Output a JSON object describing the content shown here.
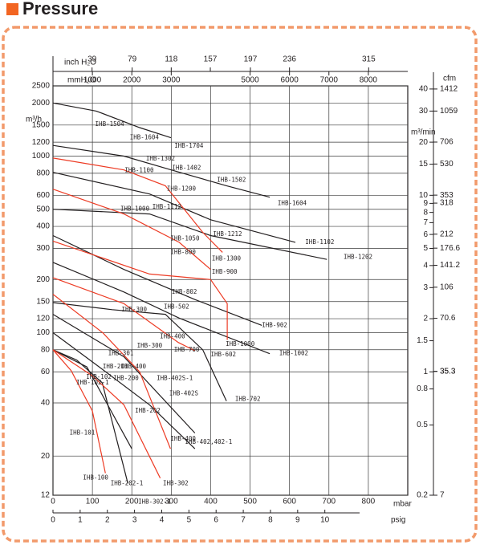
{
  "chart_data": {
    "type": "line",
    "title": "Pressure",
    "x_label": "mbar",
    "x2_label": "mmH₂O",
    "x3_label": "inch H₂O",
    "x4_label": "psig",
    "y_label": "m³/h",
    "y2_label": "m³/min",
    "y3_label": "cfm",
    "xlim": [
      0,
      900
    ],
    "xticks": [
      0,
      100,
      200,
      300,
      400,
      500,
      600,
      700,
      800
    ],
    "x2lim": [
      0,
      9000
    ],
    "x2ticks": [
      1000,
      2000,
      3000,
      5000,
      6000,
      7000,
      8000
    ],
    "x3lim": [
      0,
      354
    ],
    "x3ticks": [
      39,
      79,
      118,
      157,
      197,
      236,
      315
    ],
    "x4lim": [
      0,
      13.05
    ],
    "x4ticks": [
      0,
      1,
      2,
      3,
      4,
      5,
      6,
      7,
      8,
      9,
      10
    ],
    "ylim": [
      12,
      2500
    ],
    "yticks": [
      12,
      20,
      40,
      60,
      80,
      100,
      120,
      150,
      200,
      300,
      400,
      500,
      600,
      800,
      1000,
      1200,
      1500,
      2000,
      2500
    ],
    "log_y": true,
    "y2lim": [
      0.2,
      41.6667
    ],
    "y2ticks": [
      0.2,
      0.5,
      0.8,
      1,
      1.5,
      2,
      3,
      4,
      5,
      6,
      7,
      8,
      9,
      10,
      15,
      20,
      30,
      40
    ],
    "y3lim": [
      7,
      1471
    ],
    "y3ticks": [
      7,
      35.3,
      35.3,
      70.6,
      106,
      141.2,
      176.6,
      212,
      318,
      353,
      530,
      706,
      1059,
      1412
    ],
    "grid": true,
    "series": [
      {
        "color": "#231f20",
        "x": [
          0,
          110,
          220,
          300
        ],
        "values": [
          2000,
          1800,
          1450,
          1270
        ]
      },
      {
        "color": "#231f20",
        "x": [
          0,
          180,
          300,
          440,
          550
        ],
        "values": [
          1150,
          1000,
          835,
          680,
          585
        ]
      },
      {
        "color": "#231f20",
        "x": [
          0,
          245,
          400,
          615
        ],
        "values": [
          810,
          610,
          436,
          325
        ]
      },
      {
        "color": "#231f20",
        "x": [
          0,
          245,
          400,
          695
        ],
        "values": [
          500,
          470,
          355,
          260
        ]
      },
      {
        "color": "#231f20",
        "x": [
          0,
          180,
          360,
          530
        ],
        "values": [
          355,
          228,
          154,
          110
        ]
      },
      {
        "color": "#231f20",
        "x": [
          0,
          180,
          320,
          550
        ],
        "values": [
          250,
          170,
          121,
          76
        ]
      },
      {
        "color": "#231f20",
        "x": [
          0,
          150,
          285,
          380,
          440
        ],
        "values": [
          148,
          135,
          127,
          80,
          41
        ]
      },
      {
        "color": "#231f20",
        "x": [
          0,
          180,
          360
        ],
        "values": [
          127,
          73,
          27
        ]
      },
      {
        "color": "#231f20",
        "x": [
          0,
          113,
          245,
          360
        ],
        "values": [
          100,
          65,
          39,
          22
        ]
      },
      {
        "color": "#231f20",
        "x": [
          0,
          86,
          200
        ],
        "values": [
          80,
          64,
          22
        ]
      },
      {
        "color": "#231f20",
        "x": [
          0,
          60,
          125,
          190
        ],
        "values": [
          80,
          70,
          52,
          14
        ]
      },
      {
        "color": "#ed3b24",
        "x": [
          0,
          180,
          285,
          380,
          430
        ],
        "values": [
          975,
          835,
          680,
          370,
          285
        ]
      },
      {
        "color": "#ed3b24",
        "x": [
          0,
          180,
          320,
          400
        ],
        "values": [
          650,
          470,
          325,
          228
        ]
      },
      {
        "color": "#ed3b24",
        "x": [
          0,
          245,
          400,
          442,
          442
        ],
        "values": [
          330,
          215,
          200,
          146,
          91
        ]
      },
      {
        "color": "#ed3b24",
        "x": [
          0,
          180,
          318,
          360
        ],
        "values": [
          205,
          146,
          88,
          79
        ]
      },
      {
        "color": "#ed3b24",
        "x": [
          0,
          126,
          220,
          298
        ],
        "values": [
          165,
          100,
          60,
          22
        ]
      },
      {
        "color": "#ed3b24",
        "x": [
          0,
          100,
          180,
          272
        ],
        "values": [
          80,
          57,
          39,
          15
        ]
      },
      {
        "color": "#ed3b24",
        "x": [
          0,
          46,
          100,
          133
        ],
        "values": [
          80,
          61,
          36,
          16
        ]
      }
    ],
    "annotations": [
      {
        "text": "IHB-1504",
        "x": 107,
        "y": 1510,
        "color": "#231f20"
      },
      {
        "text": "IHB-1604",
        "x": 195,
        "y": 1270,
        "color": "#231f20"
      },
      {
        "text": "IHB-1704",
        "x": 308,
        "y": 1140,
        "color": "#231f20"
      },
      {
        "text": "IHB-1302",
        "x": 236,
        "y": 965,
        "color": "#231f20"
      },
      {
        "text": "IHB-1402",
        "x": 302,
        "y": 855,
        "color": "#231f20"
      },
      {
        "text": "IHB-1502",
        "x": 416,
        "y": 730,
        "color": "#231f20"
      },
      {
        "text": "IHB-1604",
        "x": 570,
        "y": 540,
        "color": "#231f20"
      },
      {
        "text": "IHB-1112",
        "x": 252,
        "y": 515,
        "color": "#231f20"
      },
      {
        "text": "IHB-1212",
        "x": 406,
        "y": 360,
        "color": "#231f20"
      },
      {
        "text": "IHB-1102",
        "x": 640,
        "y": 325,
        "color": "#231f20"
      },
      {
        "text": "IHB-1202",
        "x": 737,
        "y": 268,
        "color": "#231f20"
      },
      {
        "text": "IHB-802",
        "x": 301,
        "y": 170,
        "color": "#231f20"
      },
      {
        "text": "IHB-502",
        "x": 281,
        "y": 140,
        "color": "#231f20"
      },
      {
        "text": "IHB-902",
        "x": 530,
        "y": 110,
        "color": "#231f20"
      },
      {
        "text": "IHB-602",
        "x": 400,
        "y": 75,
        "color": "#231f20"
      },
      {
        "text": "IHB-1002",
        "x": 574,
        "y": 76,
        "color": "#231f20"
      },
      {
        "text": "IHB-702",
        "x": 462,
        "y": 42,
        "color": "#231f20"
      },
      {
        "text": "IHB-402S-1",
        "x": 263,
        "y": 55,
        "color": "#231f20"
      },
      {
        "text": "IHB-402S",
        "x": 295,
        "y": 45,
        "color": "#231f20"
      },
      {
        "text": "IHB-402,402-1",
        "x": 335,
        "y": 24,
        "color": "#231f20"
      },
      {
        "text": "IHB-202-1",
        "x": 146,
        "y": 14,
        "color": "#231f20"
      },
      {
        "text": "IHB-201",
        "x": 126,
        "y": 64,
        "color": "#231f20"
      },
      {
        "text": "IHB-200",
        "x": 153,
        "y": 55,
        "color": "#231f20"
      },
      {
        "text": "IHB-102-1",
        "x": 59,
        "y": 52,
        "color": "#231f20"
      },
      {
        "text": "IHB-302-1",
        "x": 216,
        "y": 11,
        "color": "#231f20"
      },
      {
        "text": "IHB-1100",
        "x": 182,
        "y": 830,
        "color": "#ed3b24"
      },
      {
        "text": "IHB-1200",
        "x": 289,
        "y": 650,
        "color": "#ed3b24"
      },
      {
        "text": "IHB-1000",
        "x": 171,
        "y": 500,
        "color": "#ed3b24"
      },
      {
        "text": "IHB-1050",
        "x": 298,
        "y": 340,
        "color": "#ed3b24"
      },
      {
        "text": "IHB-800",
        "x": 298,
        "y": 285,
        "color": "#ed3b24"
      },
      {
        "text": "IHB-1300",
        "x": 403,
        "y": 262,
        "color": "#ed3b24"
      },
      {
        "text": "IHB-900",
        "x": 403,
        "y": 220,
        "color": "#ed3b24"
      },
      {
        "text": "IHB-300",
        "x": 174,
        "y": 135,
        "color": "#ed3b24"
      },
      {
        "text": "IHB-400",
        "x": 271,
        "y": 95,
        "color": "#ed3b24"
      },
      {
        "text": "IHB-700",
        "x": 307,
        "y": 80,
        "color": "#ed3b24"
      },
      {
        "text": "IHB-1000",
        "x": 438,
        "y": 86,
        "color": "#ed3b24"
      },
      {
        "text": "IHB-301",
        "x": 140,
        "y": 76,
        "color": "#ed3b24"
      },
      {
        "text": "IHB-300",
        "x": 213,
        "y": 84,
        "color": "#ed3b24"
      },
      {
        "text": "IHB-400",
        "x": 172,
        "y": 64,
        "color": "#ed3b24"
      },
      {
        "text": "IHB-102",
        "x": 84,
        "y": 56,
        "color": "#ed3b24"
      },
      {
        "text": "IHB-202",
        "x": 208,
        "y": 36,
        "color": "#ed3b24"
      },
      {
        "text": "IHB-400",
        "x": 298,
        "y": 25,
        "color": "#ed3b24"
      },
      {
        "text": "IHB-302",
        "x": 279,
        "y": 14,
        "color": "#ed3b24"
      },
      {
        "text": "IHB-101",
        "x": 42,
        "y": 27,
        "color": "#ed3b24"
      },
      {
        "text": "IHB-100",
        "x": 76,
        "y": 15,
        "color": "#ed3b24"
      }
    ]
  }
}
